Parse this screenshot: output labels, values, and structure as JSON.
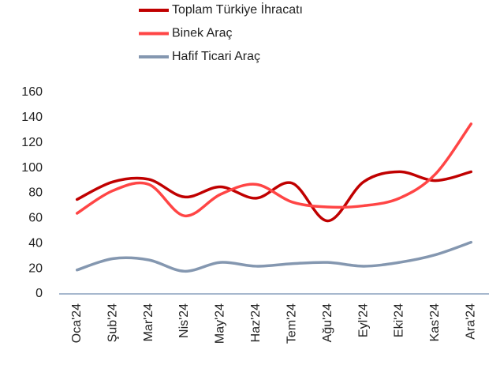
{
  "chart_data": {
    "type": "line",
    "categories": [
      "Oca'24",
      "Şub'24",
      "Mar'24",
      "Nis'24",
      "May'24",
      "Haz'24",
      "Tem'24",
      "Ağu'24",
      "Eyl'24",
      "Eki'24",
      "Kas'24",
      "Ara'24"
    ],
    "series": [
      {
        "name": "Toplam Türkiye İhracatı",
        "color": "#c00000",
        "values": [
          75,
          89,
          91,
          77,
          85,
          76,
          88,
          58,
          89,
          97,
          90,
          97
        ]
      },
      {
        "name": "Binek Araç",
        "color": "#ff4545",
        "values": [
          64,
          82,
          87,
          62,
          79,
          87,
          73,
          69,
          70,
          76,
          95,
          135
        ]
      },
      {
        "name": "Hafif Ticari Araç",
        "color": "#8497b0",
        "values": [
          19,
          28,
          27,
          18,
          25,
          22,
          24,
          25,
          22,
          25,
          31,
          41
        ]
      }
    ],
    "ylim": [
      0,
      160
    ],
    "yticks": [
      0,
      20,
      40,
      60,
      80,
      100,
      120,
      140,
      160
    ],
    "grid": false,
    "legend": "top"
  }
}
